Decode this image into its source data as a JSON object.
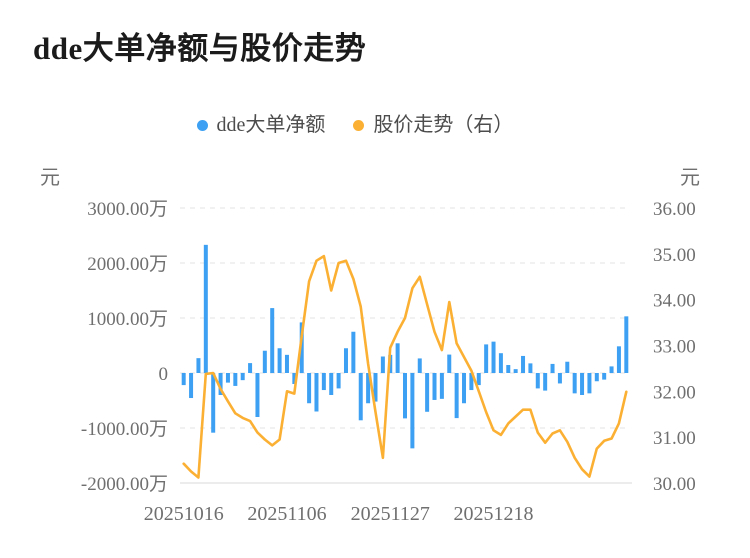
{
  "title": "dde大单净额与股价走势",
  "legend": [
    {
      "label": "dde大单净额",
      "marker": "dot",
      "color": "#3da0f2"
    },
    {
      "label": "股价走势（右）",
      "marker": "dot",
      "color": "#fbb034"
    }
  ],
  "left_axis": {
    "unit": "元",
    "ticks": [
      "3000.00万",
      "2000.00万",
      "1000.00万",
      "0",
      "-1000.00万",
      "-2000.00万"
    ],
    "tick_values_wan": [
      3000,
      2000,
      1000,
      0,
      -1000,
      -2000
    ]
  },
  "right_axis": {
    "unit": "元",
    "ticks": [
      "36.00",
      "35.00",
      "34.00",
      "33.00",
      "32.00",
      "31.00",
      "30.00"
    ],
    "tick_values": [
      36,
      35,
      34,
      33,
      32,
      31,
      30
    ]
  },
  "x_axis": {
    "tick_labels": [
      "20251016",
      "20251106",
      "20251127",
      "20251218"
    ],
    "tick_indices": [
      0,
      14,
      28,
      42
    ]
  },
  "chart_data": {
    "type": "bar",
    "subtype": "bar+line dual axis",
    "title": "dde大单净额与股价走势",
    "x_tick_labels": [
      "20251016",
      "20251106",
      "20251127",
      "20251218"
    ],
    "x_tick_indices": [
      0,
      14,
      28,
      42
    ],
    "grid": "horizontal dashed",
    "legend_position": "top-center",
    "series": [
      {
        "name": "dde大单净额",
        "type": "bar",
        "axis": "left",
        "unit": "万元",
        "ylim_wan": [
          -2000,
          3000
        ],
        "values_wan": [
          -220,
          -455,
          270,
          2330,
          -1085,
          -400,
          -175,
          -235,
          -130,
          180,
          -800,
          405,
          1180,
          450,
          330,
          -200,
          920,
          -550,
          -700,
          -310,
          -400,
          -280,
          450,
          750,
          -860,
          -550,
          -520,
          300,
          330,
          540,
          -825,
          -1370,
          265,
          -705,
          -490,
          -470,
          335,
          -820,
          -550,
          -310,
          -220,
          520,
          570,
          360,
          145,
          70,
          310,
          175,
          -280,
          -320,
          165,
          -190,
          205,
          -370,
          -400,
          -370,
          -150,
          -120,
          120,
          485,
          1030
        ]
      },
      {
        "name": "股价走势（右）",
        "type": "line",
        "axis": "right",
        "unit": "元",
        "ylim": [
          30,
          36
        ],
        "values": [
          30.42,
          30.25,
          30.12,
          32.38,
          32.4,
          32.05,
          31.78,
          31.52,
          31.42,
          31.35,
          31.1,
          30.95,
          30.82,
          30.95,
          32.0,
          31.95,
          33.2,
          34.4,
          34.85,
          34.95,
          34.2,
          34.8,
          34.85,
          34.45,
          33.85,
          32.6,
          31.55,
          30.55,
          32.95,
          33.3,
          33.6,
          34.25,
          34.5,
          33.9,
          33.3,
          32.9,
          33.95,
          33.05,
          32.75,
          32.45,
          32.0,
          31.55,
          31.15,
          31.05,
          31.3,
          31.45,
          31.6,
          31.6,
          31.1,
          30.88,
          31.08,
          31.15,
          30.9,
          30.55,
          30.3,
          30.14,
          30.75,
          30.92,
          30.97,
          31.3,
          31.99
        ]
      }
    ]
  },
  "colors": {
    "bar": "#3da0f2",
    "line": "#fbb034",
    "grid": "#e3e3e3",
    "axis_line": "#d9d9d9",
    "tick_text": "#6f6f6f",
    "title_text": "#1b1b1b",
    "legend_text": "#4c4c4c",
    "background": "#ffffff"
  }
}
